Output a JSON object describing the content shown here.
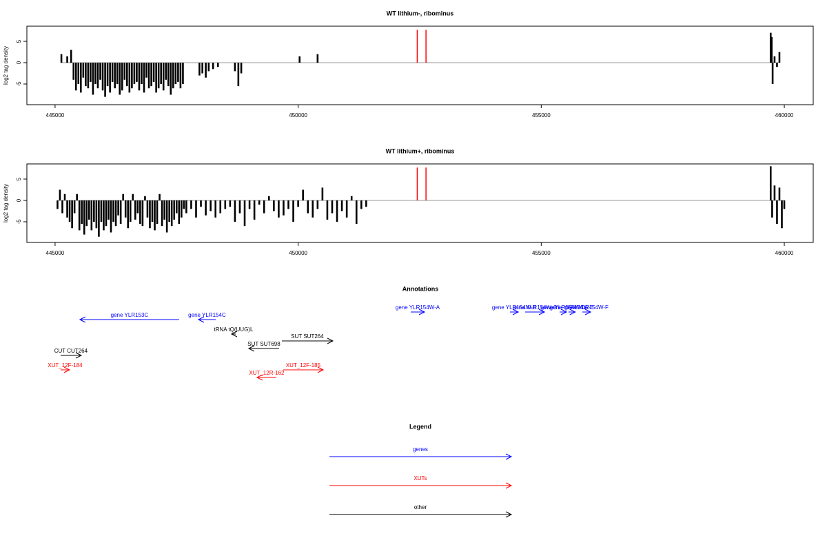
{
  "chart_data": [
    {
      "type": "needle",
      "title": "WT lithium-, ribominus",
      "ylabel": "log2 tag density",
      "xlim": [
        444420,
        460595
      ],
      "xticks": [
        445000,
        450000,
        455000,
        460000
      ],
      "ylim": [
        -9.84,
        8.55
      ],
      "yticks": [
        -5,
        0,
        5
      ],
      "series": [
        {
          "color": "#000000",
          "x": [
            445130,
            445250,
            445330,
            445380,
            445430,
            445480,
            445530,
            445580,
            445630,
            445680,
            445730,
            445780,
            445830,
            445880,
            445930,
            445980,
            446030,
            446080,
            446130,
            446180,
            446230,
            446280,
            446330,
            446380,
            446430,
            446480,
            446530,
            446580,
            446630,
            446680,
            446730,
            446780,
            446830,
            446880,
            446930,
            446980,
            447030,
            447080,
            447130,
            447180,
            447230,
            447280,
            447330,
            447380,
            447430,
            447480,
            447530,
            447580,
            447630,
            447970,
            448030,
            448100,
            448160,
            448250,
            448350,
            448700,
            448770,
            448830,
            450030,
            450400,
            459720,
            459740,
            459760,
            459800,
            459850,
            459900
          ],
          "values": [
            2,
            1.5,
            3,
            -4,
            -6.5,
            -5,
            -7,
            -3.5,
            -5.5,
            -6,
            -4.5,
            -7.5,
            -5,
            -6,
            -4,
            -6.5,
            -8,
            -5.5,
            -7,
            -4.5,
            -6,
            -5,
            -7.5,
            -6.5,
            -4,
            -5.5,
            -7,
            -6,
            -5,
            -4.5,
            -6.5,
            -5,
            -7,
            -3.5,
            -6,
            -5.5,
            -4.5,
            -7,
            -6,
            -5,
            -6.5,
            -4,
            -5.5,
            -7.5,
            -6,
            -5,
            -4.5,
            -6,
            -5,
            -3,
            -2.5,
            -3.5,
            -2,
            -1.5,
            -1,
            -2,
            -5.5,
            -2.5,
            1.5,
            2,
            7,
            6,
            -5,
            1.5,
            -1,
            2.5
          ]
        },
        {
          "color": "#ff0000",
          "x": [
            452450,
            452630
          ],
          "values": [
            7.7,
            7.7
          ]
        }
      ]
    },
    {
      "type": "needle",
      "title": "WT lithium+, ribominus",
      "ylabel": "log2 tag density",
      "xlim": [
        444420,
        460595
      ],
      "xticks": [
        445000,
        450000,
        455000,
        460000
      ],
      "ylim": [
        -9.84,
        8.55
      ],
      "yticks": [
        -5,
        0,
        5
      ],
      "series": [
        {
          "color": "#000000",
          "x": [
            445050,
            445100,
            445150,
            445200,
            445250,
            445300,
            445350,
            445400,
            445450,
            445500,
            445550,
            445600,
            445650,
            445700,
            445750,
            445800,
            445850,
            445900,
            445950,
            446000,
            446050,
            446100,
            446150,
            446200,
            446250,
            446300,
            446350,
            446400,
            446450,
            446500,
            446550,
            446600,
            446650,
            446700,
            446750,
            446800,
            446850,
            446900,
            446950,
            447000,
            447050,
            447100,
            447150,
            447200,
            447250,
            447300,
            447350,
            447400,
            447450,
            447500,
            447550,
            447600,
            447650,
            447700,
            447800,
            447900,
            448000,
            448100,
            448200,
            448300,
            448400,
            448500,
            448600,
            448700,
            448800,
            448900,
            449000,
            449100,
            449200,
            449300,
            449400,
            449500,
            449600,
            449700,
            449800,
            449900,
            450000,
            450100,
            450200,
            450300,
            450400,
            450500,
            450600,
            450700,
            450800,
            450900,
            451000,
            451100,
            451200,
            451300,
            451400,
            459720,
            459750,
            459800,
            459850,
            459900,
            459950,
            460000
          ],
          "values": [
            -2,
            2.5,
            -3,
            1.5,
            -4,
            -5,
            -6.5,
            -3,
            1.5,
            -7,
            -5.5,
            -8,
            -6,
            -4.5,
            -7,
            -5,
            -6.5,
            -8.5,
            -5,
            -7,
            -6,
            -4.5,
            -7.5,
            -5,
            -6,
            -3.5,
            -5.5,
            1.5,
            -4,
            -6.5,
            -5,
            1.5,
            -4.5,
            -3,
            -5.5,
            -6,
            1,
            -4,
            -6.5,
            -5,
            -7,
            -5.5,
            1.5,
            -6,
            -4.5,
            -7.5,
            -5,
            -6,
            -4.5,
            -3,
            -5.5,
            -4,
            -2,
            -3,
            -2,
            -4,
            -1.5,
            -3.5,
            -2.5,
            -4,
            -3,
            -2,
            -1.5,
            -5,
            -3,
            -6,
            -2,
            -4.5,
            -1,
            -3,
            1,
            -2.5,
            -4,
            -3.5,
            -2,
            -5,
            -1.5,
            2.5,
            -3,
            -4,
            -2,
            3,
            -4.5,
            -3,
            -5,
            -2.5,
            -4,
            1,
            -5.5,
            -2,
            -1.5,
            8,
            -4,
            3.5,
            -5.5,
            3,
            -6.5,
            -2
          ]
        },
        {
          "color": "#ff0000",
          "x": [
            452450,
            452630
          ],
          "values": [
            7.7,
            7.7
          ]
        }
      ]
    }
  ],
  "annotations": {
    "title": "Annotations",
    "legend_title": "Legend",
    "groups": [
      {
        "name": "genes",
        "color": "#0000ff",
        "features": [
          {
            "label": "gene YLR153C",
            "from": 447552,
            "to": 445510
          },
          {
            "label": "gene YLR154C",
            "from": 448304,
            "to": 447949
          },
          {
            "label": "gene YLR154W-A",
            "from": 452316,
            "to": 452600
          },
          {
            "label": "gene YLR154W-B",
            "from": 454358,
            "to": 454528
          },
          {
            "label": "gene YLR154W-C",
            "from": 454670,
            "to": 455067
          },
          {
            "label": "gene YLR154W-D",
            "from": 455378,
            "to": 455520
          },
          {
            "label": "gene YLR154W-E",
            "from": 455560,
            "to": 455700
          },
          {
            "label": "gene YLR154W-F",
            "from": 455847,
            "to": 456017
          }
        ]
      },
      {
        "name": "XUTs",
        "color": "#ff0000",
        "features": [
          {
            "label": "XUT_12F-184",
            "from": 445113,
            "to": 445298
          },
          {
            "label": "XUT_12R-162",
            "from": 449551,
            "to": 449154
          },
          {
            "label": "XUT_12F-185",
            "from": 449693,
            "to": 450515
          }
        ]
      },
      {
        "name": "other",
        "color": "#000000",
        "features": [
          {
            "label": "tRNA tQ(UUG)L",
            "from": 448715,
            "to": 448630
          },
          {
            "label": "SUT SUT698",
            "from": 449608,
            "to": 448984
          },
          {
            "label": "SUT SUT264",
            "from": 449665,
            "to": 450714
          },
          {
            "label": "CUT CUT264",
            "from": 445113,
            "to": 445539
          }
        ]
      }
    ]
  }
}
